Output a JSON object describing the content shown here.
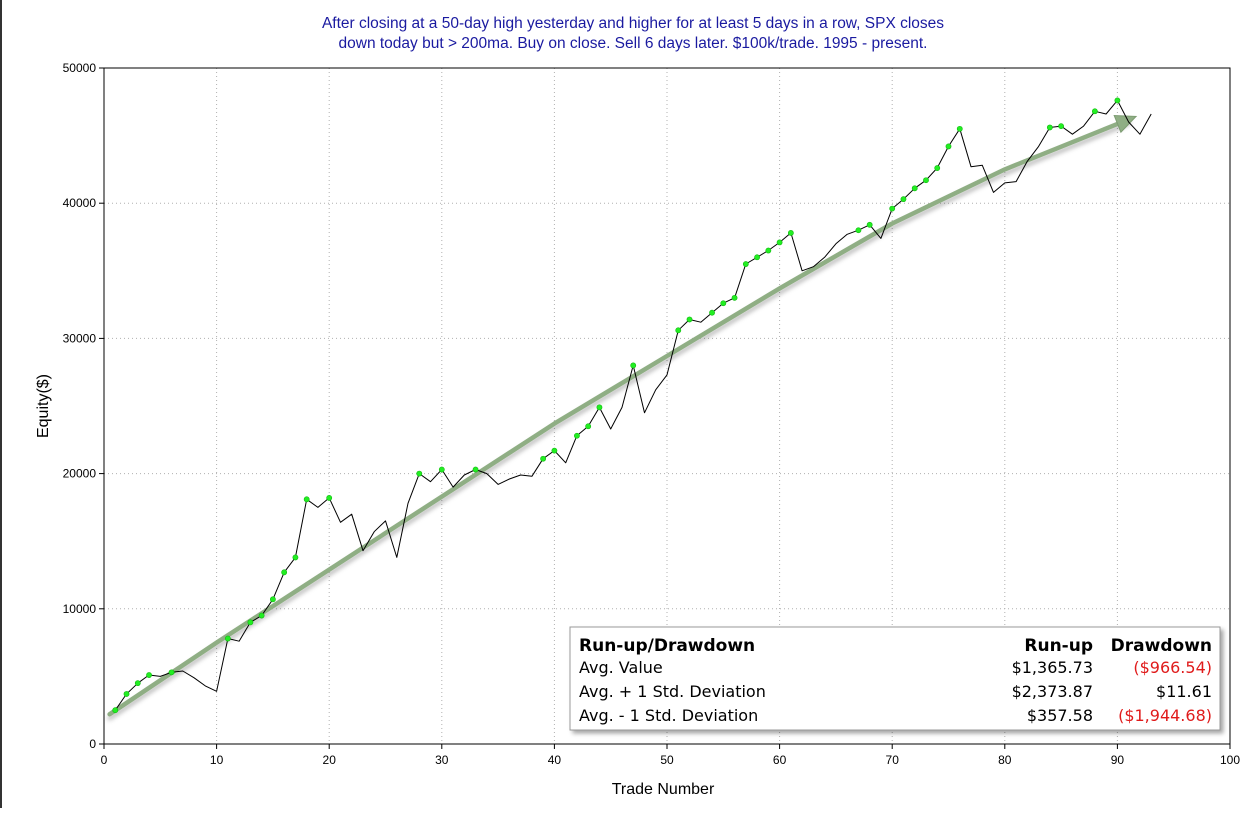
{
  "chart_data": {
    "type": "line",
    "title_lines": [
      "After closing at a 50-day high yesterday and higher for at least 5 days in a row, SPX closes",
      "down today but > 200ma. Buy on close. Sell 6 days later. $100k/trade. 1995 - present."
    ],
    "xlabel": "Trade Number",
    "ylabel": "Equity($)",
    "xlim": [
      0,
      100
    ],
    "ylim": [
      0,
      50000
    ],
    "x_ticks": [
      0,
      10,
      20,
      30,
      40,
      50,
      60,
      70,
      80,
      90,
      100
    ],
    "y_ticks": [
      0,
      10000,
      20000,
      30000,
      40000,
      50000
    ],
    "grid": true,
    "colors": {
      "title": "#1a1aa0",
      "equity_line": "#000000",
      "new_high_marker": "#22ee22",
      "trend_arrow": "#8fae84",
      "negative_value": "#e01b1b"
    },
    "series": [
      {
        "kind": "equity",
        "x": [
          1,
          2,
          3,
          4,
          5,
          6,
          7,
          8,
          9,
          10,
          11,
          12,
          13,
          14,
          15,
          16,
          17,
          18,
          19,
          20,
          21,
          22,
          23,
          24,
          25,
          26,
          27,
          28,
          29,
          30,
          31,
          32,
          33,
          34,
          35,
          36,
          37,
          38,
          39,
          40,
          41,
          42,
          43,
          44,
          45,
          46,
          47,
          48,
          49,
          50,
          51,
          52,
          53,
          54,
          55,
          56,
          57,
          58,
          59,
          60,
          61,
          62,
          63,
          64,
          65,
          66,
          67,
          68,
          69,
          70,
          71,
          72,
          73,
          74,
          75,
          76,
          77,
          78,
          79,
          80,
          81,
          82,
          83,
          84,
          85,
          86,
          87,
          88,
          89,
          90,
          91,
          92,
          93
        ],
        "y": [
          2500,
          3700,
          4500,
          5100,
          5000,
          5300,
          5400,
          4900,
          4300,
          3900,
          7800,
          7600,
          9000,
          9500,
          10700,
          12700,
          13800,
          18100,
          17500,
          18200,
          16400,
          17000,
          14300,
          15700,
          16500,
          13800,
          17800,
          20000,
          19400,
          20300,
          19000,
          19900,
          20300,
          20000,
          19200,
          19600,
          19900,
          19800,
          21100,
          21700,
          20800,
          22800,
          23500,
          24900,
          23300,
          24900,
          28000,
          24500,
          26200,
          27300,
          30600,
          31400,
          31200,
          31900,
          32600,
          33000,
          35500,
          36000,
          36500,
          37100,
          37800,
          35000,
          35300,
          36000,
          37000,
          37700,
          38000,
          38400,
          37400,
          39600,
          40300,
          41100,
          41700,
          42600,
          44200,
          45500,
          42700,
          42800,
          40800,
          41500,
          41600,
          43100,
          44200,
          45600,
          45700,
          45100,
          45700,
          46800,
          46600,
          47600,
          46000,
          45100,
          46600
        ]
      }
    ],
    "new_high_markers": {
      "x": [
        1,
        2,
        3,
        4,
        6,
        11,
        13,
        14,
        15,
        16,
        17,
        18,
        20,
        28,
        30,
        33,
        39,
        40,
        42,
        43,
        44,
        47,
        51,
        52,
        54,
        55,
        56,
        57,
        58,
        59,
        60,
        61,
        67,
        68,
        70,
        71,
        72,
        73,
        74,
        75,
        76,
        84,
        85,
        88,
        90
      ],
      "y": [
        2500,
        3700,
        4500,
        5100,
        5300,
        7800,
        9000,
        9500,
        10700,
        12700,
        13800,
        18100,
        18200,
        20000,
        20300,
        20300,
        21100,
        21700,
        22800,
        23500,
        24900,
        28000,
        30600,
        31400,
        31900,
        32600,
        33000,
        35500,
        36000,
        36500,
        37100,
        37800,
        38000,
        38400,
        39600,
        40300,
        41100,
        41700,
        42600,
        44200,
        45500,
        45600,
        45700,
        46800,
        47600
      ]
    },
    "trend_arrow": {
      "x": [
        0.5,
        10,
        20,
        30,
        40,
        50,
        60,
        70,
        80,
        91
      ],
      "y": [
        2200,
        7500,
        12900,
        18300,
        23700,
        28700,
        33700,
        38500,
        42500,
        46200
      ]
    }
  },
  "stats": {
    "header_label": "Run-up/Drawdown",
    "col1_header": "Run-up",
    "col2_header": "Drawdown",
    "rows": [
      {
        "label": "Avg. Value",
        "runup": "$1,365.73",
        "drawdown": "($966.54)",
        "drawdown_negative": true
      },
      {
        "label": "Avg. + 1 Std. Deviation",
        "runup": "$2,373.87",
        "drawdown": "$11.61",
        "drawdown_negative": false
      },
      {
        "label": "Avg. - 1 Std. Deviation",
        "runup": "$357.58",
        "drawdown": "($1,944.68)",
        "drawdown_negative": true
      }
    ]
  }
}
